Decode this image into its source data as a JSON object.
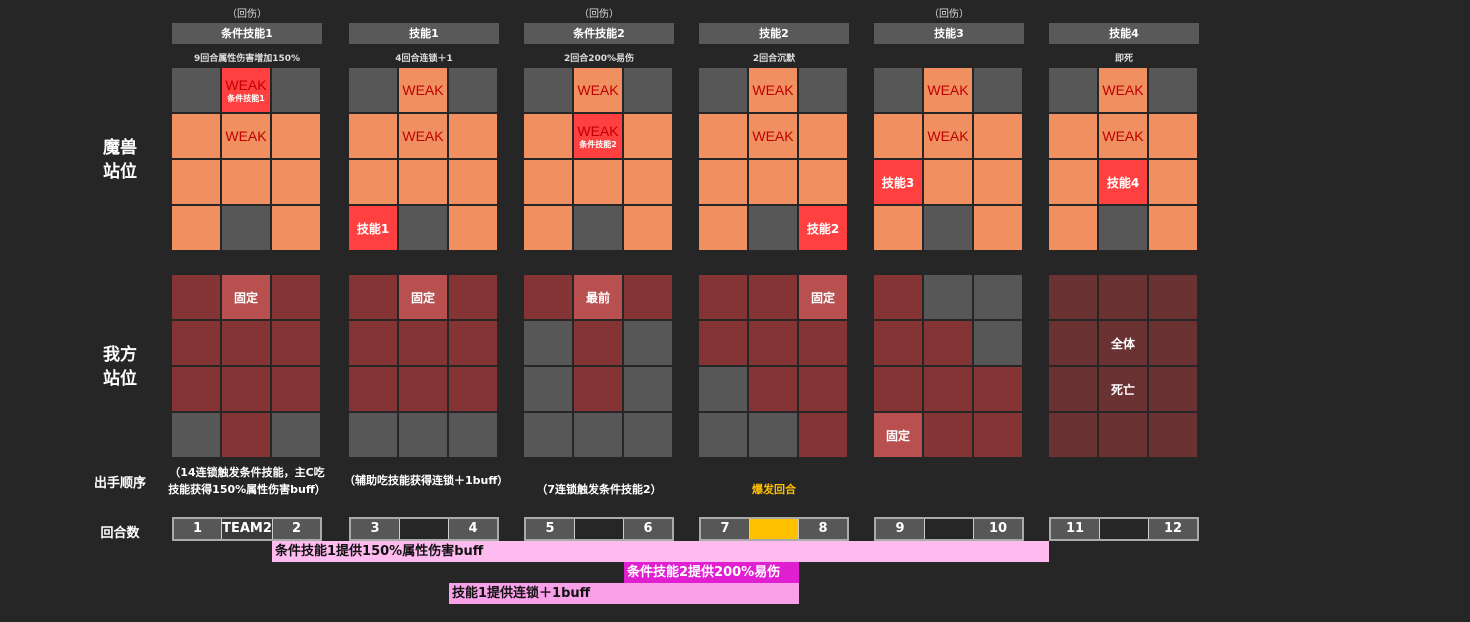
{
  "rows": {
    "monster": "魔兽\n站位",
    "ally": "我方\n站位",
    "order": "出手顺序",
    "round": "回合数"
  },
  "colors": {
    "gray": "#575757",
    "orange": "#f09060",
    "red": "#ff4040",
    "ally": "#843434",
    "ally_marked": "#b85050",
    "ally_dead": "#6a3232",
    "burst": "#ffc000"
  },
  "columns": [
    {
      "note": "（回伤）",
      "title": "条件技能1",
      "desc": "9回合属性伤害增加150%",
      "monster": [
        [
          "g"
        ],
        [
          "r",
          "WEAK",
          "条件技能1"
        ],
        [
          "g"
        ],
        [
          "o"
        ],
        [
          "o",
          "WEAK"
        ],
        [
          "o"
        ],
        [
          "o"
        ],
        [
          "o"
        ],
        [
          "o"
        ],
        [
          "o"
        ],
        [
          "g"
        ],
        [
          "o"
        ]
      ],
      "ally": [
        [
          "d"
        ],
        [
          "l",
          "固定"
        ],
        [
          "d"
        ],
        [
          "d"
        ],
        [
          "d"
        ],
        [
          "d"
        ],
        [
          "d"
        ],
        [
          "d"
        ],
        [
          "d"
        ],
        [
          "g"
        ],
        [
          "d"
        ],
        [
          "g"
        ]
      ],
      "order": "（14连锁触发条件技能，主C吃技能获得150%属性伤害buff）",
      "rounds": [
        "1",
        "TEAM2",
        "2"
      ],
      "mid": "g"
    },
    {
      "note": "",
      "title": "技能1",
      "desc": "4回合连锁＋1",
      "monster": [
        [
          "g"
        ],
        [
          "o",
          "WEAK"
        ],
        [
          "g"
        ],
        [
          "o"
        ],
        [
          "o",
          "WEAK"
        ],
        [
          "o"
        ],
        [
          "o"
        ],
        [
          "o"
        ],
        [
          "o"
        ],
        [
          "r",
          "技能1"
        ],
        [
          "g"
        ],
        [
          "o"
        ]
      ],
      "ally": [
        [
          "d"
        ],
        [
          "l",
          "固定"
        ],
        [
          "d"
        ],
        [
          "d"
        ],
        [
          "d"
        ],
        [
          "d"
        ],
        [
          "d"
        ],
        [
          "d"
        ],
        [
          "d"
        ],
        [
          "g"
        ],
        [
          "g"
        ],
        [
          "g"
        ]
      ],
      "order": "（辅助吃技能获得连锁＋1buff）",
      "rounds": [
        "3",
        "",
        "4"
      ],
      "mid": "e"
    },
    {
      "note": "（回伤）",
      "title": "条件技能2",
      "desc": "2回合200%易伤",
      "monster": [
        [
          "g"
        ],
        [
          "o",
          "WEAK"
        ],
        [
          "g"
        ],
        [
          "o"
        ],
        [
          "r",
          "WEAK",
          "条件技能2"
        ],
        [
          "o"
        ],
        [
          "o"
        ],
        [
          "o"
        ],
        [
          "o"
        ],
        [
          "o"
        ],
        [
          "g"
        ],
        [
          "o"
        ]
      ],
      "ally": [
        [
          "d"
        ],
        [
          "l",
          "最前"
        ],
        [
          "d"
        ],
        [
          "g"
        ],
        [
          "d"
        ],
        [
          "g"
        ],
        [
          "g"
        ],
        [
          "d"
        ],
        [
          "g"
        ],
        [
          "g"
        ],
        [
          "g"
        ],
        [
          "g"
        ]
      ],
      "order": "（7连锁触发条件技能2）",
      "rounds": [
        "5",
        "",
        "6"
      ],
      "mid": "e"
    },
    {
      "note": "",
      "title": "技能2",
      "desc": "2回合沉默",
      "monster": [
        [
          "g"
        ],
        [
          "o",
          "WEAK"
        ],
        [
          "g"
        ],
        [
          "o"
        ],
        [
          "o",
          "WEAK"
        ],
        [
          "o"
        ],
        [
          "o"
        ],
        [
          "o"
        ],
        [
          "o"
        ],
        [
          "o"
        ],
        [
          "g"
        ],
        [
          "r",
          "技能2"
        ]
      ],
      "ally": [
        [
          "d"
        ],
        [
          "d"
        ],
        [
          "l",
          "固定"
        ],
        [
          "d"
        ],
        [
          "d"
        ],
        [
          "d"
        ],
        [
          "g"
        ],
        [
          "d"
        ],
        [
          "d"
        ],
        [
          "g"
        ],
        [
          "g"
        ],
        [
          "d"
        ]
      ],
      "order": "爆发回合",
      "rounds": [
        "7",
        "",
        "8"
      ],
      "mid": "y"
    },
    {
      "note": "（回伤）",
      "title": "技能3",
      "desc": "",
      "monster": [
        [
          "g"
        ],
        [
          "o",
          "WEAK"
        ],
        [
          "g"
        ],
        [
          "o"
        ],
        [
          "o",
          "WEAK"
        ],
        [
          "o"
        ],
        [
          "r",
          "技能3"
        ],
        [
          "o"
        ],
        [
          "o"
        ],
        [
          "o"
        ],
        [
          "g"
        ],
        [
          "o"
        ]
      ],
      "ally": [
        [
          "d"
        ],
        [
          "g"
        ],
        [
          "g"
        ],
        [
          "d"
        ],
        [
          "d"
        ],
        [
          "g"
        ],
        [
          "d"
        ],
        [
          "d"
        ],
        [
          "d"
        ],
        [
          "l",
          "固定"
        ],
        [
          "d"
        ],
        [
          "d"
        ]
      ],
      "order": "",
      "rounds": [
        "9",
        "",
        "10"
      ],
      "mid": "e"
    },
    {
      "note": "",
      "title": "技能4",
      "desc": "即死",
      "monster": [
        [
          "g"
        ],
        [
          "o",
          "WEAK"
        ],
        [
          "g"
        ],
        [
          "o"
        ],
        [
          "o",
          "WEAK"
        ],
        [
          "o"
        ],
        [
          "o"
        ],
        [
          "r",
          "技能4"
        ],
        [
          "o"
        ],
        [
          "o"
        ],
        [
          "g"
        ],
        [
          "o"
        ]
      ],
      "ally": [
        [
          "x"
        ],
        [
          "x"
        ],
        [
          "x"
        ],
        [
          "x"
        ],
        [
          "x",
          "全体"
        ],
        [
          "x"
        ],
        [
          "x"
        ],
        [
          "x",
          "死亡"
        ],
        [
          "x"
        ],
        [
          "x"
        ],
        [
          "x"
        ],
        [
          "x"
        ]
      ],
      "order": "",
      "rounds": [
        "11",
        "",
        "12"
      ],
      "mid": "e"
    }
  ],
  "buffs": [
    {
      "label": "条件技能1提供150%属性伤害buff",
      "color": "#ffbbf0"
    },
    {
      "label": "条件技能2提供200%易伤",
      "color": "#e020d0"
    },
    {
      "label": "技能1提供连锁＋1buff",
      "color": "#f8a0e8"
    }
  ]
}
